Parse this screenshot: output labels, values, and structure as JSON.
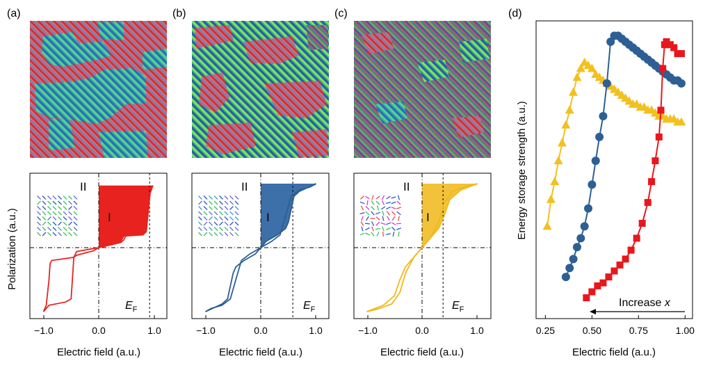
{
  "panel_labels": [
    "(a)",
    "(b)",
    "(c)",
    "(d)"
  ],
  "colors": {
    "a_fill": "#e8221f",
    "a_fill_light": "#f38a87",
    "b_fill": "#3d6fa9",
    "b_fill_light": "#c9d6ea",
    "c_fill": "#f2c33a",
    "c_fill_light": "#f9e3a5",
    "d_yellow": "#f2c01f",
    "d_blue": "#2d5f94",
    "d_red": "#e8171c"
  },
  "domain_images": [
    {
      "style": "large-domains",
      "caption": ""
    },
    {
      "style": "medium-domains",
      "caption": ""
    },
    {
      "style": "fine-domains",
      "caption": ""
    }
  ],
  "loop_panels": {
    "ylabel": "Polarization (a.u.)",
    "xlabel": "Electric field (a.u.)",
    "xticks": [
      "−1.0",
      "0.0",
      "1.0"
    ],
    "region_I": "I",
    "region_II": "II",
    "ef_main": "E",
    "ef_sub": "F",
    "ef_positions": [
      0.92,
      0.58,
      0.38
    ]
  },
  "chart_data": [
    {
      "type": "line",
      "panel": "a",
      "xlabel": "Electric field (a.u.)",
      "ylabel": "Polarization (a.u.)",
      "xlim": [
        -1.2,
        1.2
      ],
      "ylim": [
        -1.1,
        1.1
      ],
      "xticks": [
        -1.0,
        0.0,
        1.0
      ],
      "annotations": [
        "I",
        "II",
        "E_F"
      ],
      "series": [
        {
          "values": [
            [
              -1.0,
              -1.0
            ],
            [
              -0.95,
              -0.9
            ],
            [
              -0.9,
              -0.5
            ],
            [
              -0.88,
              -0.25
            ],
            [
              -0.85,
              -0.2
            ],
            [
              -0.6,
              -0.17
            ],
            [
              -0.45,
              -0.15
            ],
            [
              -0.4,
              -0.12
            ],
            [
              -0.1,
              -0.05
            ],
            [
              0.0,
              0.0
            ],
            [
              0.3,
              0.06
            ],
            [
              0.4,
              0.08
            ],
            [
              0.45,
              0.12
            ],
            [
              0.5,
              0.2
            ],
            [
              0.55,
              0.8
            ],
            [
              0.6,
              0.88
            ],
            [
              0.85,
              0.9
            ],
            [
              0.95,
              0.95
            ],
            [
              0.98,
              0.97
            ]
          ]
        },
        {
          "values": [
            [
              0.98,
              0.97
            ],
            [
              0.93,
              0.85
            ],
            [
              0.9,
              0.6
            ],
            [
              0.86,
              0.25
            ],
            [
              0.8,
              0.2
            ],
            [
              0.45,
              0.18
            ],
            [
              0.4,
              0.1
            ],
            [
              0.2,
              0.05
            ],
            [
              0.0,
              0.0
            ],
            [
              -0.4,
              -0.06
            ],
            [
              -0.45,
              -0.15
            ],
            [
              -0.5,
              -0.8
            ],
            [
              -0.6,
              -0.85
            ],
            [
              -0.9,
              -0.9
            ],
            [
              -1.0,
              -1.0
            ]
          ]
        }
      ]
    },
    {
      "type": "line",
      "panel": "b",
      "xlabel": "Electric field (a.u.)",
      "ylabel": "",
      "xlim": [
        -1.2,
        1.2
      ],
      "ylim": [
        -1.1,
        1.1
      ],
      "xticks": [
        -1.0,
        0.0,
        1.0
      ],
      "annotations": [
        "I",
        "II",
        "E_F"
      ],
      "series": [
        {
          "values": [
            [
              -1.0,
              -1.0
            ],
            [
              -0.7,
              -0.88
            ],
            [
              -0.6,
              -0.8
            ],
            [
              -0.5,
              -0.4
            ],
            [
              -0.45,
              -0.3
            ],
            [
              -0.3,
              -0.2
            ],
            [
              -0.1,
              -0.1
            ],
            [
              0.0,
              0.0
            ],
            [
              0.2,
              0.1
            ],
            [
              0.35,
              0.2
            ],
            [
              0.45,
              0.5
            ],
            [
              0.55,
              0.8
            ],
            [
              0.7,
              0.9
            ],
            [
              0.9,
              0.95
            ],
            [
              1.0,
              1.0
            ]
          ]
        },
        {
          "values": [
            [
              1.0,
              1.0
            ],
            [
              0.7,
              0.88
            ],
            [
              0.6,
              0.8
            ],
            [
              0.5,
              0.4
            ],
            [
              0.45,
              0.3
            ],
            [
              0.3,
              0.2
            ],
            [
              0.1,
              0.1
            ],
            [
              0.0,
              0.0
            ],
            [
              -0.2,
              -0.1
            ],
            [
              -0.35,
              -0.2
            ],
            [
              -0.45,
              -0.5
            ],
            [
              -0.55,
              -0.8
            ],
            [
              -0.7,
              -0.9
            ],
            [
              -0.9,
              -0.95
            ],
            [
              -1.0,
              -1.0
            ]
          ]
        }
      ]
    },
    {
      "type": "line",
      "panel": "c",
      "xlabel": "Electric field (a.u.)",
      "ylabel": "",
      "xlim": [
        -1.2,
        1.2
      ],
      "ylim": [
        -1.1,
        1.1
      ],
      "xticks": [
        -1.0,
        0.0,
        1.0
      ],
      "annotations": [
        "I",
        "II",
        "E_F"
      ],
      "series": [
        {
          "values": [
            [
              -1.0,
              -1.0
            ],
            [
              -0.7,
              -0.9
            ],
            [
              -0.5,
              -0.75
            ],
            [
              -0.4,
              -0.5
            ],
            [
              -0.3,
              -0.3
            ],
            [
              -0.15,
              -0.15
            ],
            [
              0.0,
              0.0
            ],
            [
              0.15,
              0.15
            ],
            [
              0.3,
              0.4
            ],
            [
              0.4,
              0.7
            ],
            [
              0.55,
              0.88
            ],
            [
              0.8,
              0.96
            ],
            [
              1.0,
              1.0
            ]
          ]
        },
        {
          "values": [
            [
              1.0,
              1.0
            ],
            [
              0.7,
              0.9
            ],
            [
              0.5,
              0.75
            ],
            [
              0.4,
              0.5
            ],
            [
              0.3,
              0.3
            ],
            [
              0.15,
              0.15
            ],
            [
              0.0,
              0.0
            ],
            [
              -0.15,
              -0.15
            ],
            [
              -0.3,
              -0.4
            ],
            [
              -0.4,
              -0.7
            ],
            [
              -0.55,
              -0.88
            ],
            [
              -0.8,
              -0.96
            ],
            [
              -1.0,
              -1.0
            ]
          ]
        }
      ]
    },
    {
      "type": "line",
      "panel": "d",
      "xlabel": "Electric field (a.u.)",
      "ylabel": "Energy storage strength (a.u.)",
      "xlim": [
        0.2,
        1.04
      ],
      "ylim": [
        0,
        1
      ],
      "xticks": [
        0.25,
        0.5,
        0.75,
        1.0
      ],
      "xtick_labels": [
        "0.25",
        "0.50",
        "0.75",
        "1.00"
      ],
      "annotation": "Increase x",
      "series": [
        {
          "marker": "triangle",
          "color": "#f2c01f",
          "values": [
            [
              0.26,
              0.31
            ],
            [
              0.28,
              0.4
            ],
            [
              0.3,
              0.46
            ],
            [
              0.32,
              0.53
            ],
            [
              0.34,
              0.59
            ],
            [
              0.36,
              0.65
            ],
            [
              0.38,
              0.7
            ],
            [
              0.4,
              0.76
            ],
            [
              0.42,
              0.81
            ],
            [
              0.44,
              0.84
            ],
            [
              0.46,
              0.86
            ],
            [
              0.48,
              0.85
            ],
            [
              0.5,
              0.84
            ],
            [
              0.52,
              0.82
            ],
            [
              0.54,
              0.81
            ],
            [
              0.56,
              0.8
            ],
            [
              0.58,
              0.79
            ],
            [
              0.6,
              0.78
            ],
            [
              0.62,
              0.77
            ],
            [
              0.64,
              0.76
            ],
            [
              0.66,
              0.75
            ],
            [
              0.68,
              0.74
            ],
            [
              0.7,
              0.73
            ],
            [
              0.72,
              0.72
            ],
            [
              0.74,
              0.72
            ],
            [
              0.76,
              0.71
            ],
            [
              0.78,
              0.71
            ],
            [
              0.8,
              0.7
            ],
            [
              0.82,
              0.7
            ],
            [
              0.84,
              0.69
            ],
            [
              0.86,
              0.68
            ],
            [
              0.88,
              0.68
            ],
            [
              0.9,
              0.67
            ],
            [
              0.92,
              0.67
            ],
            [
              0.94,
              0.67
            ],
            [
              0.96,
              0.66
            ],
            [
              0.98,
              0.66
            ]
          ]
        },
        {
          "marker": "circle",
          "color": "#2d5f94",
          "values": [
            [
              0.36,
              0.14
            ],
            [
              0.38,
              0.17
            ],
            [
              0.4,
              0.2
            ],
            [
              0.42,
              0.24
            ],
            [
              0.44,
              0.27
            ],
            [
              0.46,
              0.31
            ],
            [
              0.48,
              0.37
            ],
            [
              0.5,
              0.45
            ],
            [
              0.52,
              0.53
            ],
            [
              0.54,
              0.61
            ],
            [
              0.56,
              0.68
            ],
            [
              0.58,
              0.79
            ],
            [
              0.6,
              0.93
            ],
            [
              0.62,
              0.95
            ],
            [
              0.64,
              0.95
            ],
            [
              0.66,
              0.94
            ],
            [
              0.68,
              0.93
            ],
            [
              0.7,
              0.92
            ],
            [
              0.72,
              0.91
            ],
            [
              0.74,
              0.9
            ],
            [
              0.76,
              0.89
            ],
            [
              0.78,
              0.88
            ],
            [
              0.8,
              0.87
            ],
            [
              0.82,
              0.86
            ],
            [
              0.84,
              0.85
            ],
            [
              0.86,
              0.84
            ],
            [
              0.88,
              0.83
            ],
            [
              0.9,
              0.82
            ],
            [
              0.92,
              0.81
            ],
            [
              0.94,
              0.8
            ],
            [
              0.96,
              0.8
            ],
            [
              0.98,
              0.79
            ]
          ]
        },
        {
          "marker": "square",
          "color": "#e8171c",
          "values": [
            [
              0.47,
              0.07
            ],
            [
              0.5,
              0.09
            ],
            [
              0.53,
              0.11
            ],
            [
              0.56,
              0.12
            ],
            [
              0.59,
              0.14
            ],
            [
              0.62,
              0.16
            ],
            [
              0.65,
              0.18
            ],
            [
              0.68,
              0.2
            ],
            [
              0.71,
              0.23
            ],
            [
              0.74,
              0.27
            ],
            [
              0.77,
              0.32
            ],
            [
              0.8,
              0.39
            ],
            [
              0.82,
              0.46
            ],
            [
              0.84,
              0.53
            ],
            [
              0.86,
              0.61
            ],
            [
              0.87,
              0.7
            ],
            [
              0.88,
              0.84
            ],
            [
              0.89,
              0.92
            ],
            [
              0.9,
              0.93
            ],
            [
              0.92,
              0.92
            ],
            [
              0.94,
              0.91
            ],
            [
              0.96,
              0.89
            ],
            [
              0.98,
              0.89
            ]
          ]
        }
      ]
    }
  ]
}
